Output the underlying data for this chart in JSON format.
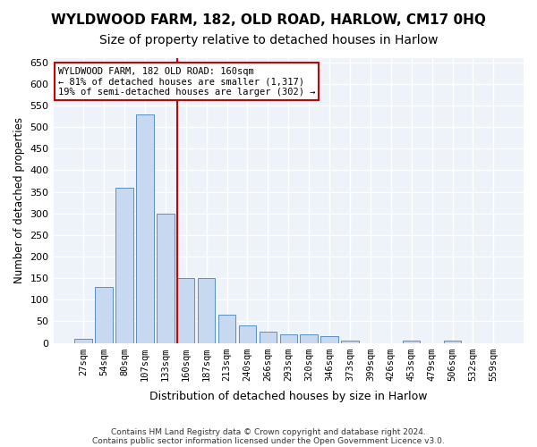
{
  "title": "WYLDWOOD FARM, 182, OLD ROAD, HARLOW, CM17 0HQ",
  "subtitle": "Size of property relative to detached houses in Harlow",
  "xlabel": "Distribution of detached houses by size in Harlow",
  "ylabel": "Number of detached properties",
  "bin_labels": [
    "27sqm",
    "54sqm",
    "80sqm",
    "107sqm",
    "133sqm",
    "160sqm",
    "187sqm",
    "213sqm",
    "240sqm",
    "266sqm",
    "293sqm",
    "320sqm",
    "346sqm",
    "373sqm",
    "399sqm",
    "426sqm",
    "453sqm",
    "479sqm",
    "506sqm",
    "532sqm",
    "559sqm"
  ],
  "bar_values": [
    10,
    130,
    360,
    530,
    300,
    150,
    150,
    65,
    40,
    25,
    20,
    20,
    15,
    5,
    0,
    0,
    5,
    0,
    5,
    0,
    0
  ],
  "bar_color": "#c6d9f0",
  "bar_edge_color": "#5a8fc3",
  "highlight_index": 5,
  "highlight_line_color": "#cc0000",
  "property_label": "WYLDWOOD FARM, 182 OLD ROAD: 160sqm",
  "annotation_line1": "← 81% of detached houses are smaller (1,317)",
  "annotation_line2": "19% of semi-detached houses are larger (302) →",
  "ylim": [
    0,
    660
  ],
  "yticks": [
    0,
    50,
    100,
    150,
    200,
    250,
    300,
    350,
    400,
    450,
    500,
    550,
    600,
    650
  ],
  "footnote1": "Contains HM Land Registry data © Crown copyright and database right 2024.",
  "footnote2": "Contains public sector information licensed under the Open Government Licence v3.0.",
  "bg_color": "#eef3f9",
  "grid_color": "#ffffff",
  "title_fontsize": 11,
  "subtitle_fontsize": 10
}
